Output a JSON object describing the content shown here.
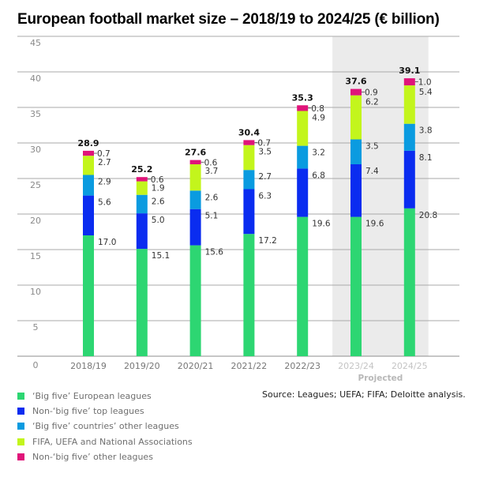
{
  "chart_data": {
    "type": "bar",
    "stacked": true,
    "title": "European football market size – 2018/19 to 2024/25 (€ billion)",
    "xlabel": "",
    "ylabel": "",
    "ylim": [
      0,
      45
    ],
    "yticks": [
      0,
      5,
      10,
      15,
      20,
      25,
      30,
      35,
      40,
      45
    ],
    "grid": true,
    "categories": [
      "2018/19",
      "2019/20",
      "2020/21",
      "2021/22",
      "2022/23",
      "2023/24",
      "2024/25"
    ],
    "projected": [
      false,
      false,
      false,
      false,
      false,
      true,
      true
    ],
    "projected_label": "Projected",
    "series": [
      {
        "name": "‘Big five’ European leagues",
        "color": "#2dd672",
        "values": [
          17.0,
          15.1,
          15.6,
          17.2,
          19.6,
          19.6,
          20.8
        ]
      },
      {
        "name": "Non-‘big five’ top leagues",
        "color": "#0a2cf0",
        "values": [
          5.6,
          5.0,
          5.1,
          6.3,
          6.8,
          7.4,
          8.1
        ]
      },
      {
        "name": "‘Big five’ countries’ other leagues",
        "color": "#0a9be0",
        "values": [
          2.9,
          2.6,
          2.6,
          2.7,
          3.2,
          3.5,
          3.8
        ]
      },
      {
        "name": "FIFA, UEFA and National Associations",
        "color": "#c3f51c",
        "values": [
          2.7,
          1.9,
          3.7,
          3.5,
          4.9,
          6.2,
          5.4
        ]
      },
      {
        "name": "Non-‘big five’ other leagues",
        "color": "#e0147a",
        "values": [
          0.7,
          0.6,
          0.6,
          0.7,
          0.8,
          0.9,
          1.0
        ]
      }
    ],
    "totals": [
      28.9,
      25.2,
      27.6,
      30.4,
      35.3,
      37.6,
      39.1
    ],
    "legend_position": "bottom-left",
    "source": "Source: Leagues; UEFA; FIFA; Deloitte analysis."
  }
}
